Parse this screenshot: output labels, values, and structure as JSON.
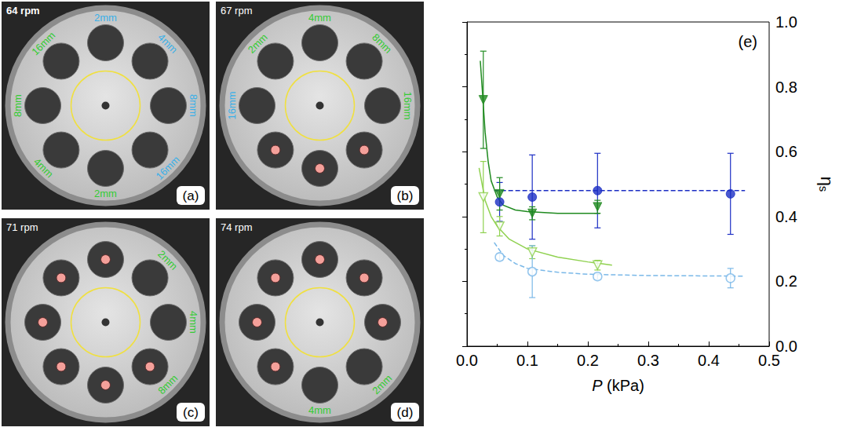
{
  "panels": [
    {
      "letter": "(a)",
      "speed": "64 rpm",
      "holes": [
        {
          "label": "2mm",
          "color": "#3ab0e8",
          "marked": false
        },
        {
          "label": "4mm",
          "color": "#3ab0e8",
          "marked": false
        },
        {
          "label": "8mm",
          "color": "#3ab0e8",
          "marked": false
        },
        {
          "label": "16mm",
          "color": "#3ab0e8",
          "marked": false
        },
        {
          "label": "2mm",
          "color": "#33cc33",
          "marked": false
        },
        {
          "label": "4mm",
          "color": "#33cc33",
          "marked": false
        },
        {
          "label": "8mm",
          "color": "#33cc33",
          "marked": false
        },
        {
          "label": "16mm",
          "color": "#33cc33",
          "marked": false
        }
      ]
    },
    {
      "letter": "(b)",
      "speed": "67 rpm",
      "holes": [
        {
          "label": "4mm",
          "color": "#33cc33",
          "marked": false
        },
        {
          "label": "8mm",
          "color": "#33cc33",
          "marked": false
        },
        {
          "label": "16mm",
          "color": "#33cc33",
          "marked": false
        },
        {
          "marked": true
        },
        {
          "marked": true
        },
        {
          "marked": true
        },
        {
          "label": "16mm",
          "color": "#3ab0e8",
          "marked": false
        },
        {
          "label": "2mm",
          "color": "#33cc33",
          "marked": false
        }
      ]
    },
    {
      "letter": "(c)",
      "speed": "71 rpm",
      "holes": [
        {
          "marked": true
        },
        {
          "label": "2mm",
          "color": "#33cc33",
          "marked": false
        },
        {
          "label": "4mm",
          "color": "#33cc33",
          "marked": false
        },
        {
          "label": "8mm",
          "color": "#33cc33",
          "marked": true
        },
        {
          "marked": true
        },
        {
          "marked": true
        },
        {
          "marked": true
        },
        {
          "marked": true
        }
      ]
    },
    {
      "letter": "(d)",
      "speed": "74 rpm",
      "holes": [
        {
          "marked": true
        },
        {
          "marked": true
        },
        {
          "marked": true
        },
        {
          "label": "2mm",
          "color": "#33cc33",
          "marked": false
        },
        {
          "label": "4mm",
          "color": "#33cc33",
          "marked": false
        },
        {
          "marked": true
        },
        {
          "marked": true
        },
        {
          "marked": true
        }
      ]
    }
  ],
  "chart_data": {
    "type": "scatter",
    "letter": "(e)",
    "x_label": "P (kPa)",
    "y_label": "ηs",
    "xlim": [
      0,
      0.5
    ],
    "xticks": [
      {
        "value": 0,
        "label": "0.0"
      },
      0.1,
      0.2,
      0.3,
      0.4,
      0.5
    ],
    "ylim": [
      0,
      1
    ],
    "yticks": [
      {
        "value": 0,
        "label": "0.0"
      },
      0.2,
      0.4,
      0.6,
      0.8,
      {
        "value": 1,
        "label": "1.0"
      }
    ],
    "grid": false,
    "series": [
      {
        "type": "line",
        "color": "#1c2ec4",
        "line_style": "dashed",
        "x": [
          0.045,
          0.46
        ],
        "values": [
          0.48,
          0.48
        ]
      },
      {
        "type": "line",
        "color": "#7ab8e8",
        "line_style": "dashed",
        "x": [
          0.045,
          0.06,
          0.08,
          0.1,
          0.15,
          0.2,
          0.3,
          0.46
        ],
        "values": [
          0.32,
          0.28,
          0.255,
          0.24,
          0.228,
          0.222,
          0.218,
          0.216
        ]
      },
      {
        "type": "line",
        "color": "#1f8a1f",
        "line_style": "solid",
        "x": [
          0.022,
          0.025,
          0.03,
          0.035,
          0.04,
          0.05,
          0.06,
          0.08,
          0.1,
          0.15,
          0.22
        ],
        "values": [
          0.88,
          0.8,
          0.66,
          0.57,
          0.51,
          0.46,
          0.435,
          0.42,
          0.415,
          0.41,
          0.41
        ]
      },
      {
        "type": "line",
        "color": "#8fd14f",
        "line_style": "solid",
        "x": [
          0.02,
          0.03,
          0.04,
          0.05,
          0.07,
          0.1,
          0.15,
          0.2,
          0.24
        ],
        "values": [
          0.55,
          0.45,
          0.4,
          0.37,
          0.33,
          0.3,
          0.275,
          0.26,
          0.25
        ]
      },
      {
        "type": "scatter",
        "color": "#1c2ec4",
        "marker": "circle",
        "x": [
          0.054,
          0.108,
          0.216,
          0.436
        ],
        "values": [
          0.445,
          0.46,
          0.48,
          0.47
        ],
        "errors": [
          0.06,
          0.13,
          0.115,
          0.125
        ]
      },
      {
        "type": "scatter",
        "color": "#1f8a1f",
        "marker": "triangle_down",
        "x": [
          0.027,
          0.054,
          0.108,
          0.216
        ],
        "values": [
          0.76,
          0.47,
          0.41,
          0.43
        ],
        "errors": [
          0.15,
          0.05,
          0.02,
          0.02
        ]
      },
      {
        "type": "scatter",
        "color": "#8fd14f",
        "marker": "open_triangle_down",
        "x": [
          0.027,
          0.054,
          0.108,
          0.216
        ],
        "values": [
          0.46,
          0.37,
          0.29,
          0.25
        ],
        "errors": [
          0.11,
          0.03,
          0.02,
          0.015
        ]
      },
      {
        "type": "scatter",
        "color": "#7ab8e8",
        "marker": "open_circle",
        "x": [
          0.054,
          0.108,
          0.216,
          0.436
        ],
        "values": [
          0.275,
          0.23,
          0.215,
          0.21
        ],
        "errors": [
          0.01,
          0.08,
          0.01,
          0.03
        ]
      }
    ]
  }
}
